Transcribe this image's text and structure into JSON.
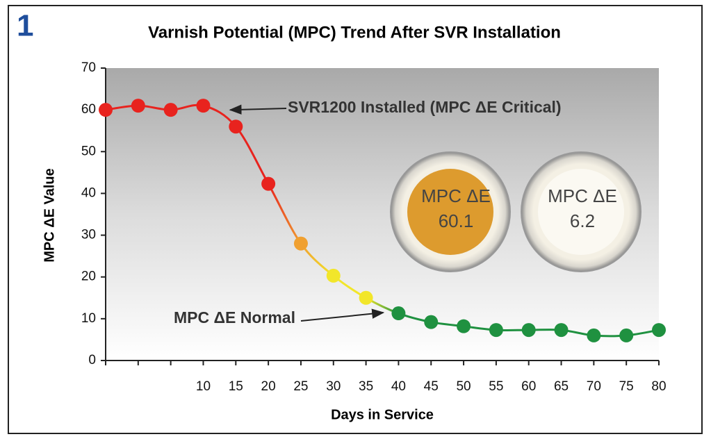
{
  "figure_number": "1",
  "chart_data": {
    "type": "line",
    "title": "Varnish Potential (MPC) Trend After SVR Installation",
    "x_label": "Days in Service",
    "y_label": "MPC ΔE Value",
    "categories": [
      null,
      null,
      null,
      10,
      15,
      20,
      25,
      30,
      35,
      40,
      45,
      50,
      55,
      60,
      65,
      70,
      75,
      80
    ],
    "values": [
      60,
      61,
      60,
      61,
      56,
      42.3,
      28,
      20.3,
      15,
      11.3,
      9.2,
      8.2,
      7.3,
      7.3,
      7.3,
      6,
      6,
      7.3
    ],
    "point_colors": [
      "#e8231e",
      "#e8231e",
      "#e8231e",
      "#e8231e",
      "#e8231e",
      "#e8231e",
      "#f0a030",
      "#f2e62a",
      "#f2e62a",
      "#1f9140",
      "#1f9140",
      "#1f9140",
      "#1f9140",
      "#1f9140",
      "#1f9140",
      "#1f9140",
      "#1f9140",
      "#1f9140"
    ],
    "ylim": [
      0,
      70
    ],
    "yticks": [
      0,
      10,
      20,
      30,
      40,
      50,
      60,
      70
    ],
    "annotations": [
      {
        "text": "SVR1200 Installed (MPC ΔE Critical)",
        "points_to_index": 4
      },
      {
        "text": "MPC ΔE Normal",
        "points_to_index": 9
      }
    ],
    "sample_labels": [
      {
        "name": "MPC ΔE",
        "value": "60.1"
      },
      {
        "name": "MPC ΔE",
        "value": "6.2"
      }
    ]
  }
}
